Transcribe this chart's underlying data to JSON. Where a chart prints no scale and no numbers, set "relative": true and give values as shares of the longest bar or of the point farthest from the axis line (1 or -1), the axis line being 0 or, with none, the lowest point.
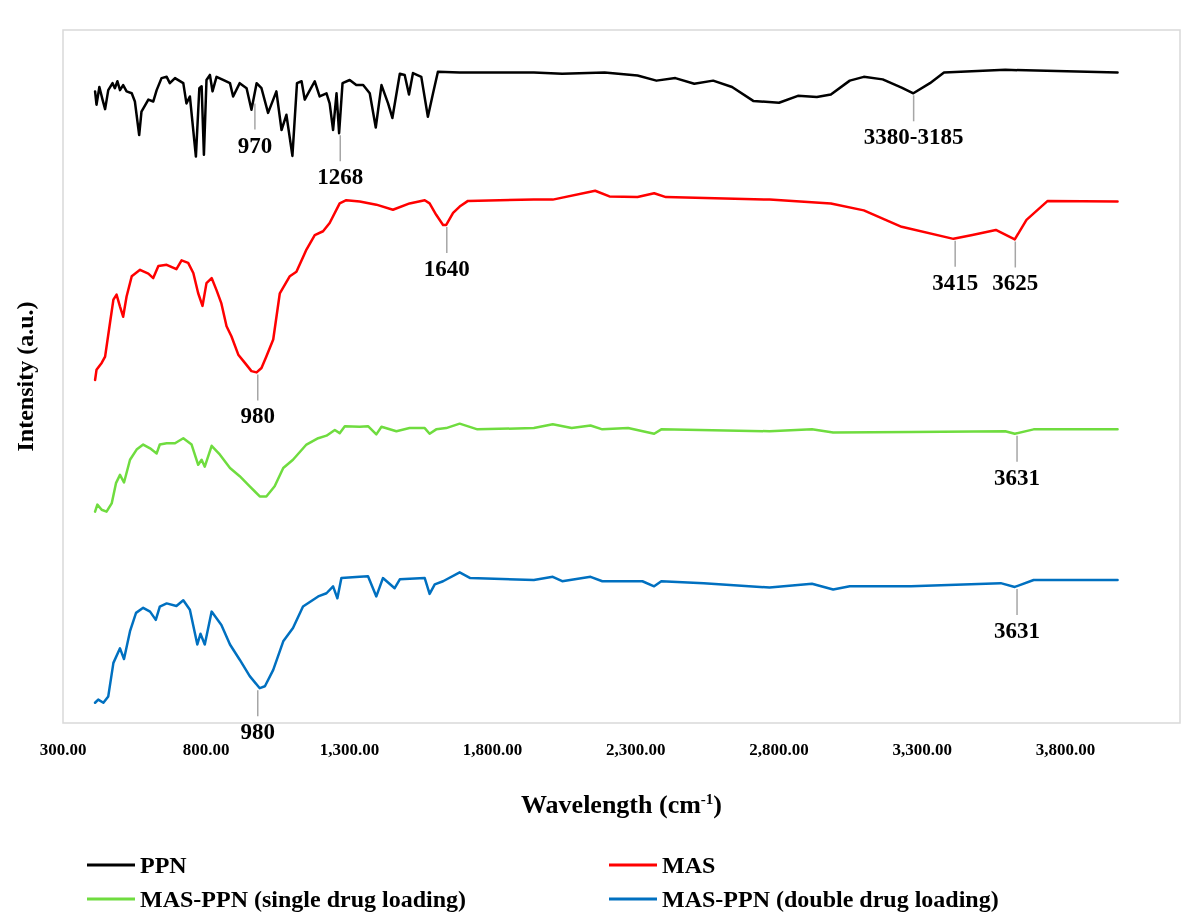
{
  "chart_data": {
    "type": "line",
    "relative": true,
    "xlabel": "Wavelength (cm$^{-1}$)",
    "ylabel": "Intensity (a.u.)",
    "xlim": [
      300,
      4200
    ],
    "xticks": [
      {
        "value": 300,
        "label": "300.00"
      },
      {
        "value": 800,
        "label": "800.00"
      },
      {
        "value": 1300,
        "label": "1,300.00"
      },
      {
        "value": 1800,
        "label": "1,800.00"
      },
      {
        "value": 2300,
        "label": "2,300.00"
      },
      {
        "value": 2800,
        "label": "2,800.00"
      },
      {
        "value": 3300,
        "label": "3,300.00"
      },
      {
        "value": 3800,
        "label": "3,800.00"
      }
    ],
    "grid": false,
    "legend": "bottom",
    "marker": "none",
    "line_style": "solid",
    "series": [
      {
        "name": "PPN",
        "color": "#000000",
        "x": [
          412,
          417,
          427,
          438,
          447,
          458,
          473,
          481,
          490,
          499,
          510,
          522,
          540,
          551,
          566,
          574,
          598,
          615,
          627,
          644,
          662,
          673,
          691,
          720,
          731,
          743,
          764,
          776,
          784,
          792,
          801,
          813,
          822,
          836,
          859,
          883,
          894,
          917,
          941,
          958,
          976,
          993,
          1016,
          1034,
          1045,
          1063,
          1080,
          1101,
          1117,
          1133,
          1144,
          1162,
          1179,
          1196,
          1220,
          1231,
          1243,
          1255,
          1264,
          1276,
          1301,
          1324,
          1348,
          1371,
          1392,
          1412,
          1435,
          1450,
          1476,
          1493,
          1508,
          1522,
          1551,
          1574,
          1592,
          1609,
          1685,
          1944,
          2043,
          2191,
          2306,
          2372,
          2438,
          2504,
          2570,
          2636,
          2710,
          2800,
          2866,
          2932,
          2981,
          3047,
          3096,
          3162,
          3228,
          3269,
          3327,
          3376,
          3590,
          3982
        ],
        "values": [
          0.966,
          0.945,
          0.973,
          0.953,
          0.938,
          0.968,
          0.979,
          0.971,
          0.982,
          0.968,
          0.976,
          0.966,
          0.963,
          0.95,
          0.897,
          0.934,
          0.953,
          0.95,
          0.968,
          0.987,
          0.989,
          0.979,
          0.987,
          0.979,
          0.947,
          0.958,
          0.863,
          0.971,
          0.974,
          0.866,
          0.984,
          0.992,
          0.966,
          0.989,
          0.984,
          0.979,
          0.958,
          0.979,
          0.971,
          0.937,
          0.979,
          0.971,
          0.932,
          0.953,
          0.966,
          0.905,
          0.929,
          0.864,
          0.979,
          0.982,
          0.953,
          0.968,
          0.982,
          0.958,
          0.963,
          0.947,
          0.905,
          0.963,
          0.9,
          0.979,
          0.984,
          0.976,
          0.976,
          0.963,
          0.909,
          0.976,
          0.947,
          0.924,
          0.994,
          0.992,
          0.961,
          0.995,
          0.989,
          0.926,
          0.963,
          0.997,
          0.996,
          0.996,
          0.994,
          0.996,
          0.991,
          0.983,
          0.987,
          0.978,
          0.983,
          0.973,
          0.951,
          0.948,
          0.959,
          0.957,
          0.961,
          0.983,
          0.989,
          0.985,
          0.972,
          0.963,
          0.979,
          0.996,
          1.0,
          0.996
        ]
      },
      {
        "name": "MAS",
        "color": "#ff0000",
        "x": [
          412,
          417,
          435,
          447,
          464,
          476,
          487,
          499,
          510,
          522,
          540,
          569,
          598,
          615,
          633,
          662,
          696,
          714,
          737,
          755,
          772,
          787,
          801,
          819,
          836,
          853,
          871,
          888,
          912,
          935,
          958,
          976,
          993,
          1010,
          1034,
          1057,
          1092,
          1115,
          1150,
          1179,
          1208,
          1231,
          1266,
          1289,
          1336,
          1394,
          1452,
          1510,
          1563,
          1580,
          1603,
          1627,
          1638,
          1662,
          1685,
          1714,
          1944,
          2010,
          2158,
          2208,
          2306,
          2364,
          2405,
          2767,
          2981,
          3096,
          3228,
          3409,
          3475,
          3557,
          3623,
          3664,
          3738,
          3982
        ],
        "values": [
          0.51,
          0.526,
          0.537,
          0.547,
          0.6,
          0.637,
          0.645,
          0.626,
          0.61,
          0.642,
          0.674,
          0.684,
          0.678,
          0.671,
          0.69,
          0.692,
          0.685,
          0.699,
          0.695,
          0.679,
          0.647,
          0.627,
          0.663,
          0.671,
          0.652,
          0.631,
          0.595,
          0.579,
          0.55,
          0.537,
          0.524,
          0.522,
          0.529,
          0.547,
          0.574,
          0.647,
          0.674,
          0.681,
          0.716,
          0.739,
          0.745,
          0.758,
          0.789,
          0.794,
          0.792,
          0.787,
          0.779,
          0.789,
          0.794,
          0.789,
          0.771,
          0.755,
          0.755,
          0.774,
          0.784,
          0.793,
          0.795,
          0.795,
          0.809,
          0.8,
          0.799,
          0.805,
          0.799,
          0.795,
          0.789,
          0.778,
          0.752,
          0.733,
          0.739,
          0.747,
          0.732,
          0.763,
          0.793,
          0.792
        ]
      },
      {
        "name": "MAS-PPN (single drug loading)",
        "color": "#6fdc3f",
        "x": [
          412,
          420,
          435,
          452,
          470,
          485,
          499,
          513,
          534,
          557,
          580,
          604,
          627,
          638,
          662,
          691,
          720,
          749,
          772,
          784,
          795,
          819,
          848,
          883,
          917,
          952,
          987,
          1010,
          1039,
          1069,
          1103,
          1150,
          1191,
          1220,
          1249,
          1266,
          1284,
          1336,
          1365,
          1394,
          1412,
          1464,
          1510,
          1563,
          1580,
          1603,
          1638,
          1685,
          1747,
          1944,
          2010,
          2076,
          2142,
          2183,
          2273,
          2364,
          2389,
          2767,
          2915,
          2989,
          3261,
          3590,
          3623,
          3689,
          3982
        ],
        "values": [
          0.302,
          0.313,
          0.305,
          0.302,
          0.315,
          0.347,
          0.36,
          0.348,
          0.384,
          0.4,
          0.408,
          0.402,
          0.394,
          0.408,
          0.41,
          0.41,
          0.418,
          0.408,
          0.376,
          0.384,
          0.373,
          0.406,
          0.392,
          0.371,
          0.358,
          0.342,
          0.326,
          0.326,
          0.342,
          0.371,
          0.384,
          0.408,
          0.418,
          0.422,
          0.431,
          0.426,
          0.437,
          0.436,
          0.437,
          0.424,
          0.436,
          0.429,
          0.434,
          0.434,
          0.425,
          0.432,
          0.434,
          0.441,
          0.432,
          0.434,
          0.44,
          0.434,
          0.438,
          0.432,
          0.434,
          0.425,
          0.432,
          0.429,
          0.432,
          0.427,
          0.428,
          0.429,
          0.425,
          0.432,
          0.432
        ]
      },
      {
        "name": "MAS-PPN (double drug loading)",
        "color": "#0070c0",
        "x": [
          412,
          423,
          441,
          458,
          476,
          499,
          513,
          534,
          555,
          580,
          604,
          624,
          638,
          662,
          696,
          720,
          743,
          769,
          780,
          795,
          819,
          853,
          883,
          917,
          952,
          987,
          1005,
          1034,
          1069,
          1103,
          1138,
          1191,
          1220,
          1243,
          1258,
          1272,
          1336,
          1365,
          1394,
          1417,
          1458,
          1476,
          1563,
          1580,
          1598,
          1627,
          1685,
          1722,
          1944,
          2010,
          2043,
          2142,
          2183,
          2323,
          2364,
          2389,
          2537,
          2767,
          2915,
          2989,
          3047,
          3261,
          3574,
          3623,
          3689,
          3982
        ],
        "values": [
          0.0,
          0.005,
          0.0,
          0.01,
          0.063,
          0.086,
          0.069,
          0.113,
          0.142,
          0.15,
          0.144,
          0.131,
          0.152,
          0.157,
          0.153,
          0.162,
          0.147,
          0.092,
          0.109,
          0.092,
          0.144,
          0.123,
          0.092,
          0.068,
          0.042,
          0.023,
          0.026,
          0.052,
          0.097,
          0.118,
          0.152,
          0.168,
          0.173,
          0.184,
          0.165,
          0.197,
          0.199,
          0.2,
          0.168,
          0.197,
          0.181,
          0.195,
          0.197,
          0.172,
          0.187,
          0.192,
          0.206,
          0.197,
          0.194,
          0.199,
          0.192,
          0.199,
          0.192,
          0.192,
          0.184,
          0.192,
          0.189,
          0.182,
          0.188,
          0.179,
          0.184,
          0.184,
          0.189,
          0.183,
          0.194,
          0.194
        ]
      }
    ],
    "annotations": [
      {
        "text": "970",
        "x": 970,
        "y": 0.95
      },
      {
        "text": "1268",
        "x": 1268,
        "y": 0.9
      },
      {
        "text": "3380-3185",
        "x": 3270,
        "y": 0.963
      },
      {
        "text": "1640",
        "x": 1640,
        "y": 0.755
      },
      {
        "text": "980",
        "x": 980,
        "y": 0.522
      },
      {
        "text": "3415",
        "x": 3415,
        "y": 0.733
      },
      {
        "text": "3625",
        "x": 3625,
        "y": 0.732
      },
      {
        "text": "3631",
        "x": 3631,
        "y": 0.425
      },
      {
        "text": "980",
        "x": 980,
        "y": 0.023
      },
      {
        "text": "3631",
        "x": 3631,
        "y": 0.183
      }
    ]
  }
}
